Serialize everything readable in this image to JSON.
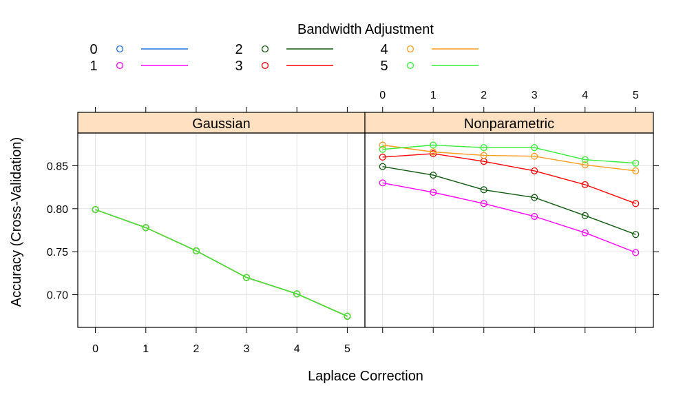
{
  "chart_data": {
    "type": "line",
    "legend_title": "Bandwidth Adjustment",
    "legend_position": "top",
    "xlabel": "Laplace Correction",
    "ylabel": "Accuracy (Cross-Validation)",
    "x": [
      0,
      1,
      2,
      3,
      4,
      5
    ],
    "xlim": [
      -0.35,
      5.35
    ],
    "ylim": [
      0.662,
      0.888
    ],
    "y_ticks": [
      "0.70",
      "0.75",
      "0.80",
      "0.85"
    ],
    "grid": true,
    "panels": [
      {
        "name": "Gaussian",
        "series": [
          {
            "name": "0",
            "color": "#1f6fde",
            "values": [
              0.799,
              0.778,
              0.751,
              0.72,
              0.701,
              0.675
            ]
          },
          {
            "name": "1",
            "color": "#ff00ff",
            "values": [
              0.799,
              0.778,
              0.751,
              0.72,
              0.701,
              0.675
            ]
          },
          {
            "name": "2",
            "color": "#0f5a0f",
            "values": [
              0.799,
              0.778,
              0.751,
              0.72,
              0.701,
              0.675
            ]
          },
          {
            "name": "3",
            "color": "#ff0000",
            "values": [
              0.799,
              0.778,
              0.751,
              0.72,
              0.701,
              0.675
            ]
          },
          {
            "name": "4",
            "color": "#ff9a1a",
            "values": [
              0.799,
              0.778,
              0.751,
              0.72,
              0.701,
              0.675
            ]
          },
          {
            "name": "5",
            "color": "#33ee33",
            "values": [
              0.799,
              0.778,
              0.751,
              0.72,
              0.701,
              0.675
            ]
          }
        ]
      },
      {
        "name": "Nonparametric",
        "series": [
          {
            "name": "1",
            "color": "#ff00ff",
            "values": [
              0.83,
              0.819,
              0.806,
              0.791,
              0.772,
              0.749
            ]
          },
          {
            "name": "2",
            "color": "#0f5a0f",
            "values": [
              0.849,
              0.839,
              0.822,
              0.813,
              0.792,
              0.77
            ]
          },
          {
            "name": "3",
            "color": "#ff0000",
            "values": [
              0.86,
              0.864,
              0.855,
              0.844,
              0.828,
              0.806
            ]
          },
          {
            "name": "4",
            "color": "#ff9a1a",
            "values": [
              0.874,
              0.866,
              0.862,
              0.861,
              0.851,
              0.844
            ]
          },
          {
            "name": "5",
            "color": "#33ee33",
            "values": [
              0.869,
              0.874,
              0.871,
              0.871,
              0.857,
              0.853
            ]
          }
        ]
      }
    ],
    "legend": [
      {
        "name": "0",
        "color": "#1f6fde"
      },
      {
        "name": "1",
        "color": "#ff00ff"
      },
      {
        "name": "2",
        "color": "#0f5a0f"
      },
      {
        "name": "3",
        "color": "#ff0000"
      },
      {
        "name": "4",
        "color": "#ff9a1a"
      },
      {
        "name": "5",
        "color": "#33ee33"
      }
    ],
    "strip_color": "#ffe0c0"
  }
}
